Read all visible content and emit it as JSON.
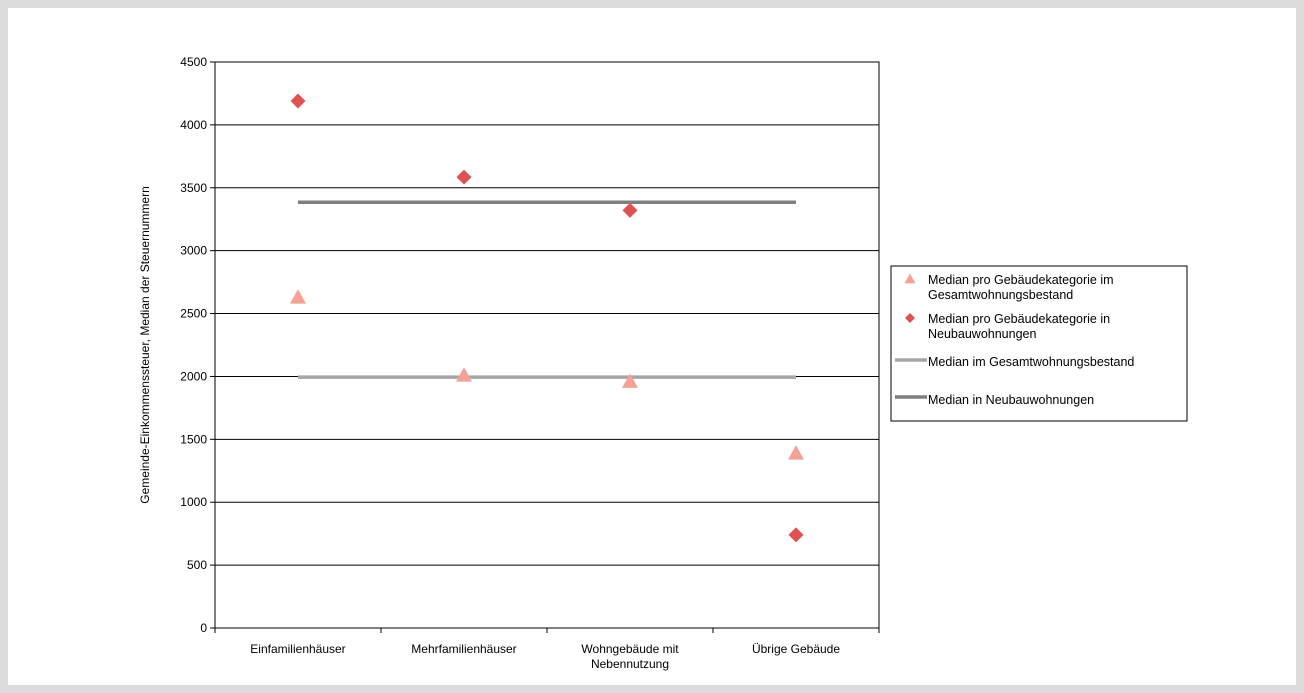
{
  "chart_data": {
    "type": "scatter",
    "categories": [
      [
        "Einfamilienhäuser"
      ],
      [
        "Mehrfamilienhäuser"
      ],
      [
        "Wohngebäude mit",
        "Nebennutzung"
      ],
      [
        "Übrige Gebäude"
      ]
    ],
    "ylabel": "Gemeinde-Einkommenssteuer, Median der Steuernummern",
    "xlabel": "",
    "title": "",
    "ylim": [
      0,
      4500
    ],
    "yticks": [
      0,
      500,
      1000,
      1500,
      2000,
      2500,
      3000,
      3500,
      4000,
      4500
    ],
    "grid": "horizontal",
    "legend_position": "right",
    "series": [
      {
        "name": [
          "Median pro Gebäudekategorie im",
          "Gesamtwohnungsbestand"
        ],
        "marker": "triangle",
        "color": "#f4a296",
        "values": [
          2630,
          2010,
          1960,
          1390
        ]
      },
      {
        "name": [
          "Median pro Gebäudekategorie in",
          "Neubauwohnungen"
        ],
        "marker": "diamond",
        "color": "#e05252",
        "values": [
          4190,
          3585,
          3320,
          740
        ]
      }
    ],
    "reference_lines": [
      {
        "name": "Median im Gesamtwohnungsbestand",
        "value": 1995,
        "color": "#a6a6a6"
      },
      {
        "name": "Median in Neubauwohnungen",
        "value": 3385,
        "color": "#7f7f7f"
      }
    ]
  }
}
